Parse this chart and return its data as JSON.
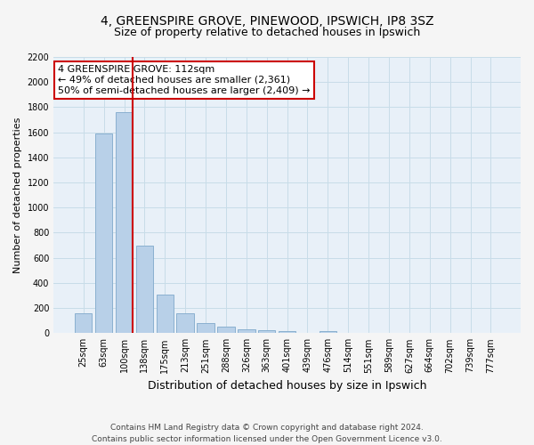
{
  "title": "4, GREENSPIRE GROVE, PINEWOOD, IPSWICH, IP8 3SZ",
  "subtitle": "Size of property relative to detached houses in Ipswich",
  "xlabel": "Distribution of detached houses by size in Ipswich",
  "ylabel": "Number of detached properties",
  "categories": [
    "25sqm",
    "63sqm",
    "100sqm",
    "138sqm",
    "175sqm",
    "213sqm",
    "251sqm",
    "288sqm",
    "326sqm",
    "363sqm",
    "401sqm",
    "439sqm",
    "476sqm",
    "514sqm",
    "551sqm",
    "589sqm",
    "627sqm",
    "664sqm",
    "702sqm",
    "739sqm",
    "777sqm"
  ],
  "values": [
    160,
    1590,
    1760,
    700,
    310,
    160,
    80,
    50,
    30,
    20,
    15,
    5,
    15,
    3,
    1,
    0,
    0,
    0,
    0,
    0,
    0
  ],
  "bar_color": "#b8d0e8",
  "bar_edge_color": "#8ab0d0",
  "red_line_index": 2,
  "annotation_text": "4 GREENSPIRE GROVE: 112sqm\n← 49% of detached houses are smaller (2,361)\n50% of semi-detached houses are larger (2,409) →",
  "annotation_box_color": "#ffffff",
  "annotation_box_edge": "#cc0000",
  "ylim": [
    0,
    2200
  ],
  "yticks": [
    0,
    200,
    400,
    600,
    800,
    1000,
    1200,
    1400,
    1600,
    1800,
    2000,
    2200
  ],
  "grid_color": "#c8dce8",
  "plot_bg_color": "#e8f0f8",
  "fig_bg_color": "#f5f5f5",
  "footer_line1": "Contains HM Land Registry data © Crown copyright and database right 2024.",
  "footer_line2": "Contains public sector information licensed under the Open Government Licence v3.0.",
  "title_fontsize": 10,
  "subtitle_fontsize": 9,
  "xlabel_fontsize": 9,
  "ylabel_fontsize": 8,
  "tick_fontsize": 7,
  "annotation_fontsize": 8,
  "footer_fontsize": 6.5,
  "bar_width": 0.85
}
